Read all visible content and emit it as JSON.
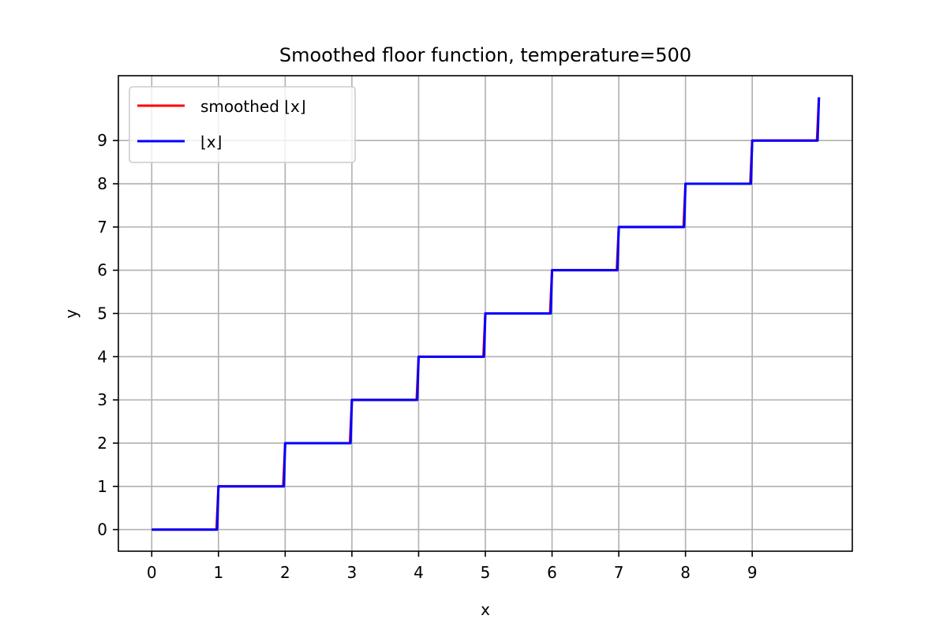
{
  "chart_data": {
    "type": "line",
    "title": "Smoothed floor function, temperature=500",
    "xlabel": "x",
    "ylabel": "y",
    "xlim": [
      -0.5,
      10.5
    ],
    "ylim": [
      -0.5,
      10.5
    ],
    "xticks": [
      0,
      1,
      2,
      3,
      4,
      5,
      6,
      7,
      8,
      9
    ],
    "yticks": [
      0,
      1,
      2,
      3,
      4,
      5,
      6,
      7,
      8,
      9
    ],
    "grid": true,
    "legend_position": "upper-left",
    "x_range": [
      0,
      10
    ],
    "series": [
      {
        "name": "smoothed ⌊x⌋",
        "color": "#ff0000",
        "kind": "smoothed-step",
        "x": [
          0,
          1,
          2,
          3,
          4,
          5,
          6,
          7,
          8,
          9,
          10
        ],
        "y": [
          0,
          1,
          2,
          3,
          4,
          5,
          6,
          7,
          8,
          9,
          10
        ]
      },
      {
        "name": "⌊x⌋",
        "color": "#0000ff",
        "kind": "step",
        "x": [
          0,
          1,
          2,
          3,
          4,
          5,
          6,
          7,
          8,
          9,
          10
        ],
        "y": [
          0,
          1,
          2,
          3,
          4,
          5,
          6,
          7,
          8,
          9,
          10
        ]
      }
    ]
  }
}
